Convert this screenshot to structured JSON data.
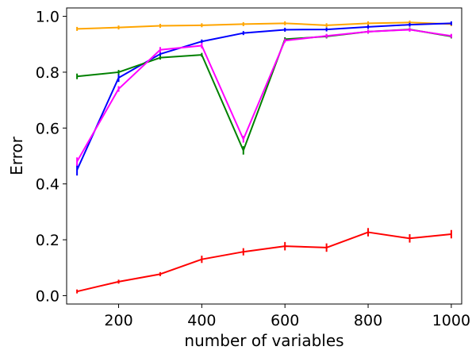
{
  "chart_data": {
    "type": "line",
    "xlabel": "number of variables",
    "ylabel": "Error",
    "xlim": [
      75,
      1025
    ],
    "ylim": [
      -0.03,
      1.03
    ],
    "x_ticks": [
      200,
      400,
      600,
      800,
      1000
    ],
    "y_ticks": [
      0.0,
      0.2,
      0.4,
      0.6,
      0.8,
      1.0
    ],
    "x_tick_labels": [
      "200",
      "400",
      "600",
      "800",
      "1000"
    ],
    "y_tick_labels": [
      "0.0",
      "0.2",
      "0.4",
      "0.6",
      "0.8",
      "1.0"
    ],
    "grid": false,
    "legend": "none",
    "x": [
      100,
      200,
      300,
      400,
      500,
      600,
      700,
      800,
      900,
      1000
    ],
    "series": [
      {
        "color": "#ffa500",
        "values": [
          0.955,
          0.96,
          0.966,
          0.968,
          0.972,
          0.975,
          0.968,
          0.975,
          0.978,
          0.972
        ],
        "errors": [
          0,
          0,
          0,
          0,
          0,
          0,
          0,
          0,
          0,
          0
        ]
      },
      {
        "color": "#0000ff",
        "values": [
          0.45,
          0.78,
          0.865,
          0.91,
          0.94,
          0.952,
          0.953,
          0.962,
          0.97,
          0.975
        ],
        "errors": [
          0.02,
          0.015,
          0.01,
          0.005,
          0.004,
          0.003,
          0.003,
          0.003,
          0.003,
          0.003
        ]
      },
      {
        "color": "#008000",
        "values": [
          0.785,
          0.8,
          0.852,
          0.862,
          0.52,
          0.918,
          0.928,
          0.945,
          0.953,
          0.928
        ],
        "errors": [
          0.01,
          0.008,
          0.006,
          0.006,
          0.015,
          0.005,
          0.004,
          0.004,
          0.003,
          0.003
        ]
      },
      {
        "color": "#ff00ff",
        "values": [
          0.48,
          0.74,
          0.88,
          0.895,
          0.56,
          0.913,
          0.93,
          0.945,
          0.952,
          0.93
        ],
        "errors": [
          0.015,
          0.01,
          0.01,
          0.01,
          0.012,
          0.005,
          0.004,
          0.004,
          0.003,
          0.003
        ]
      },
      {
        "color": "#ff0000",
        "values": [
          0.015,
          0.05,
          0.077,
          0.13,
          0.157,
          0.177,
          0.172,
          0.227,
          0.205,
          0.22
        ],
        "errors": [
          0.004,
          0.005,
          0.006,
          0.013,
          0.013,
          0.015,
          0.015,
          0.015,
          0.015,
          0.015
        ]
      }
    ]
  }
}
